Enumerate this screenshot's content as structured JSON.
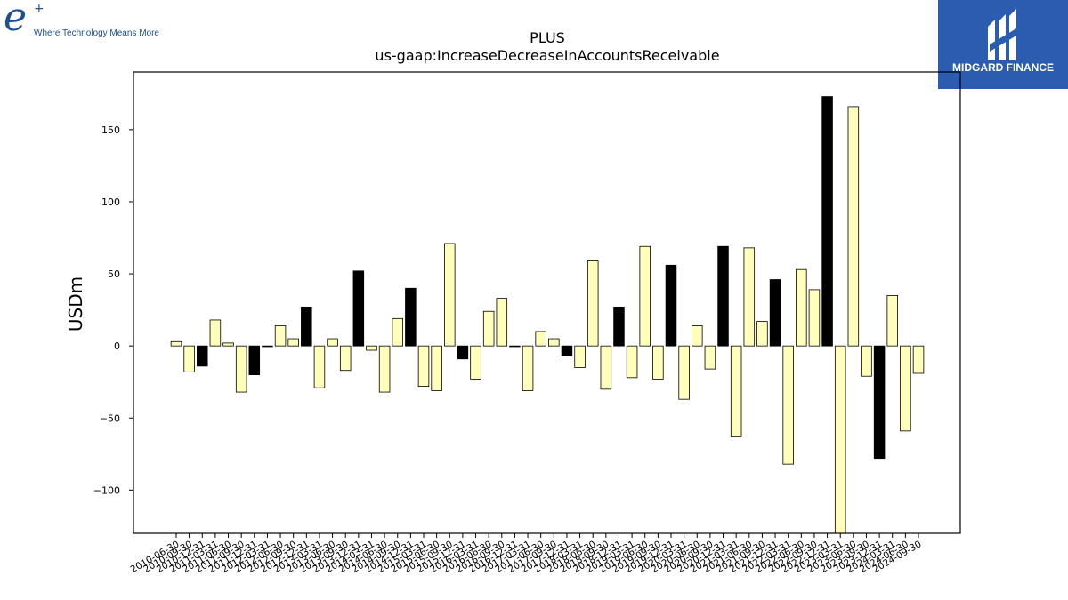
{
  "logos": {
    "left_tagline": "Where Technology Means More",
    "right_brand": "MIDGARD FINANCE"
  },
  "chart_data": {
    "type": "bar",
    "title": "PLUS",
    "subtitle": "us-gaap:IncreaseDecreaseInAccountsReceivable",
    "xlabel": "",
    "ylabel": "USDm",
    "ylim": [
      -130,
      190
    ],
    "yticks": [
      -100,
      -50,
      0,
      50,
      100,
      150
    ],
    "grid": false,
    "colors": {
      "regular": "#ffffbb",
      "highlight": "#000000",
      "edge": "#000000"
    },
    "categories": [
      "2010-06-30",
      "2010-09-30",
      "2010-12-31",
      "2011-03-31",
      "2011-06-30",
      "2011-09-30",
      "2011-12-31",
      "2012-03-31",
      "2012-06-30",
      "2012-09-30",
      "2012-12-31",
      "2013-03-31",
      "2013-06-30",
      "2013-09-30",
      "2013-12-31",
      "2014-03-31",
      "2014-06-30",
      "2014-09-30",
      "2014-12-31",
      "2015-03-31",
      "2015-06-30",
      "2015-09-30",
      "2015-12-31",
      "2016-03-31",
      "2016-06-30",
      "2016-09-30",
      "2016-12-31",
      "2017-03-31",
      "2017-06-30",
      "2017-09-30",
      "2017-12-31",
      "2018-03-31",
      "2018-06-30",
      "2018-09-30",
      "2018-12-31",
      "2019-03-31",
      "2019-06-30",
      "2019-09-30",
      "2019-12-31",
      "2020-03-31",
      "2020-06-30",
      "2020-09-30",
      "2020-12-31",
      "2021-03-31",
      "2021-06-30",
      "2021-09-30",
      "2021-12-31",
      "2022-03-31",
      "2022-06-30",
      "2022-09-30",
      "2022-12-31",
      "2023-03-31",
      "2023-06-30",
      "2023-09-30",
      "2023-12-31",
      "2024-03-31",
      "2024-06-30",
      "2024-09-30"
    ],
    "values": [
      3,
      -18,
      -14,
      18,
      2,
      -32,
      -20,
      0,
      14,
      5,
      27,
      -29,
      5,
      -17,
      52,
      -3,
      -32,
      19,
      40,
      -28,
      -31,
      71,
      -9,
      -23,
      24,
      33,
      0,
      -31,
      10,
      5,
      -7,
      -15,
      59,
      -30,
      27,
      -22,
      69,
      -23,
      56,
      -37,
      14,
      -16,
      69,
      -63,
      68,
      17,
      46,
      -82,
      53,
      39,
      173,
      -132,
      166,
      -21,
      -78,
      35,
      -59,
      -19
    ],
    "highlight": [
      false,
      false,
      true,
      false,
      false,
      false,
      true,
      false,
      false,
      false,
      true,
      false,
      false,
      false,
      true,
      false,
      false,
      false,
      true,
      false,
      false,
      false,
      true,
      false,
      false,
      false,
      true,
      false,
      false,
      false,
      true,
      false,
      false,
      false,
      true,
      false,
      false,
      false,
      true,
      false,
      false,
      false,
      true,
      false,
      false,
      false,
      true,
      false,
      false,
      false,
      true,
      false,
      false,
      false,
      true,
      false,
      false,
      false
    ]
  }
}
